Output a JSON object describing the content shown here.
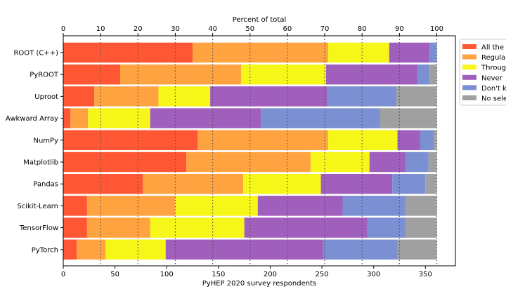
{
  "chart_data": {
    "type": "bar",
    "orientation": "horizontal",
    "stacked": true,
    "top_axis_label": "Percent of total",
    "top_axis_ticks": [
      0,
      10,
      20,
      30,
      40,
      50,
      60,
      70,
      80,
      90,
      100
    ],
    "top_axis_range": [
      0,
      100
    ],
    "xlabel": "PyHEP 2020 survey respondents",
    "xticks": [
      0,
      50,
      100,
      150,
      200,
      250,
      300,
      350
    ],
    "xlim": [
      0,
      379
    ],
    "total_respondents": 361,
    "categories": [
      "ROOT (C++)",
      "PyROOT",
      "Uproot",
      "Awkward Array",
      "NumPy",
      "Matplotlib",
      "Pandas",
      "Scikit-Learn",
      "TensorFlow",
      "PyTorch"
    ],
    "series": [
      {
        "name": "All the time",
        "color": "#ff5733",
        "values": [
          125,
          55,
          30,
          7,
          130,
          119,
          77,
          23,
          23,
          13
        ]
      },
      {
        "name": "Regularly",
        "color": "#ffa341",
        "values": [
          131,
          117,
          62,
          17,
          126,
          120,
          97,
          85,
          61,
          28
        ]
      },
      {
        "name": "Throughout",
        "color": "#f6f619",
        "values": [
          59,
          82,
          50,
          60,
          67,
          57,
          75,
          80,
          91,
          58
        ]
      },
      {
        "name": "Never",
        "color": "#a05ebd",
        "values": [
          39,
          88,
          113,
          107,
          22,
          35,
          69,
          82,
          119,
          152
        ]
      },
      {
        "name": "Don't know",
        "color": "#7b8fd3",
        "values": [
          7,
          12,
          67,
          115,
          13,
          22,
          32,
          61,
          37,
          72
        ]
      },
      {
        "name": "No selection",
        "color": "#a0a0a0",
        "values": [
          0,
          7,
          39,
          55,
          3,
          8,
          11,
          30,
          30,
          38
        ]
      }
    ],
    "grid": "vertical dotted lines at top-axis ticks",
    "legend_position": "upper-right"
  }
}
